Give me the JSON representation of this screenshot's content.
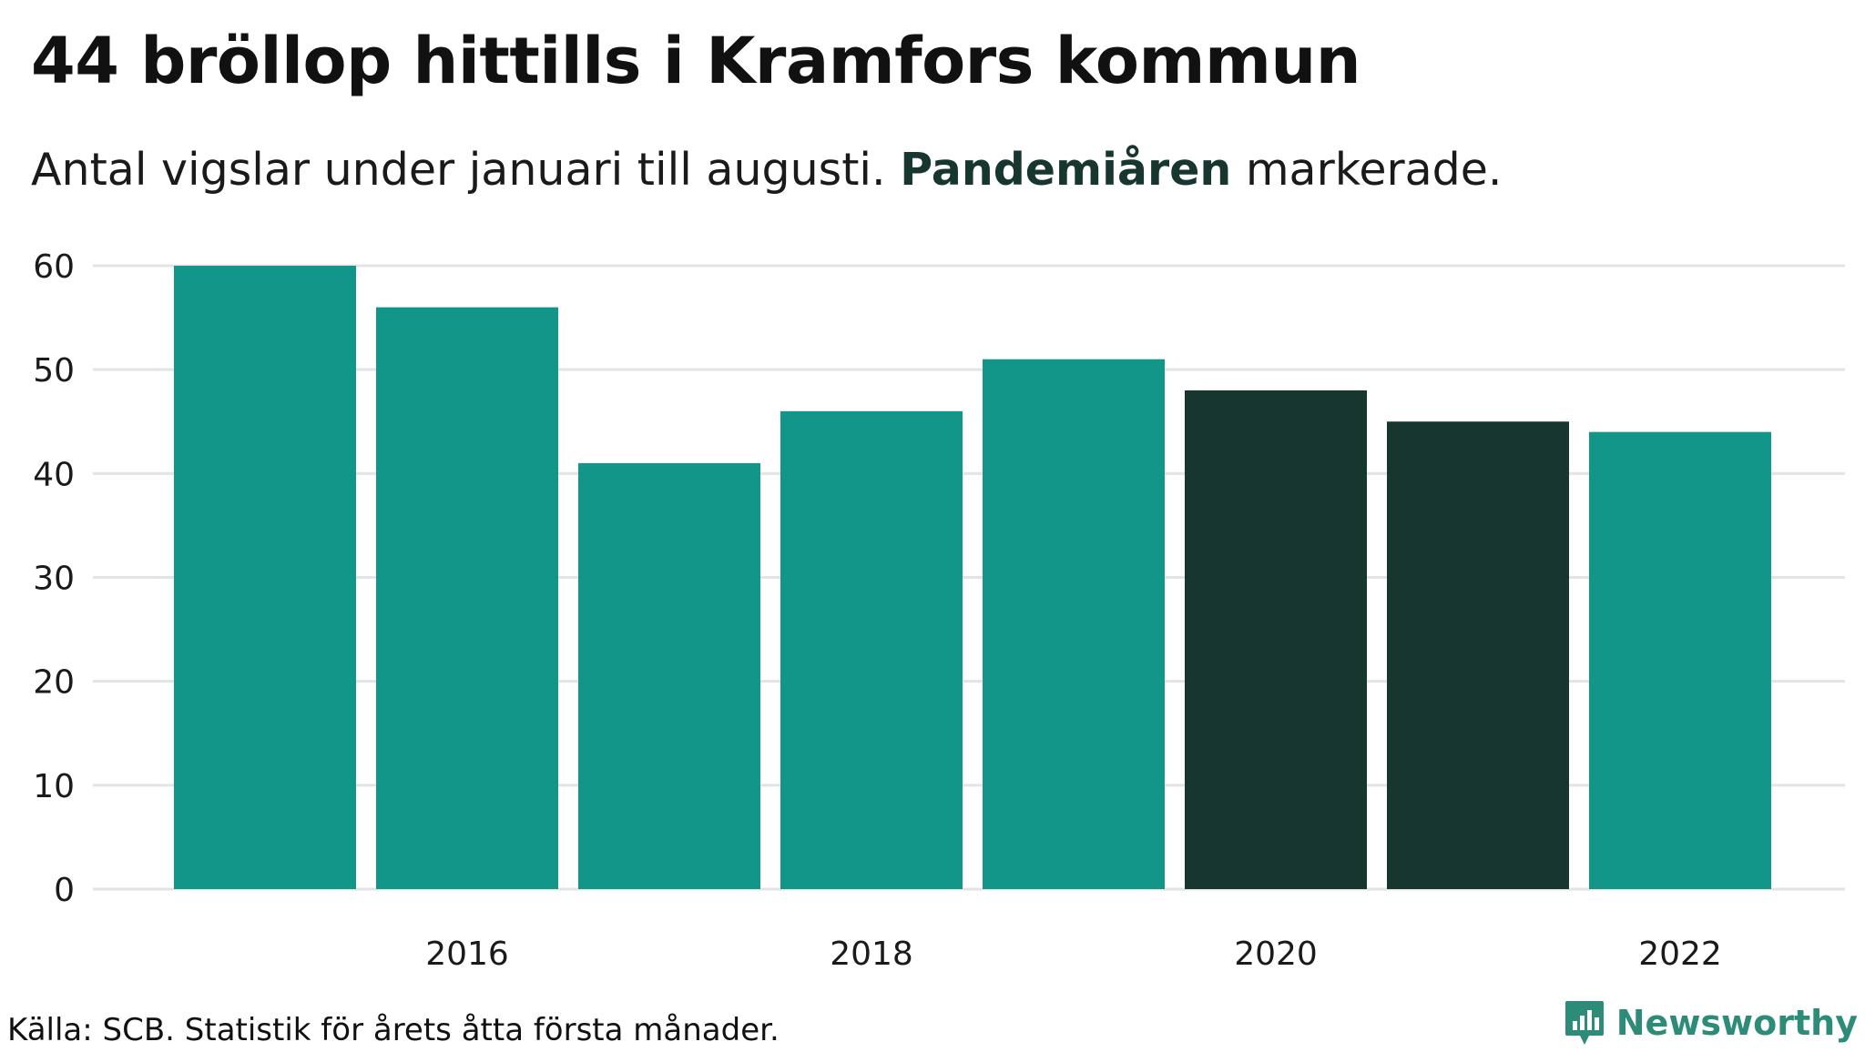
{
  "title": "44 bröllop hittills i Kramfors kommun",
  "subtitle": {
    "before": "Antal vigslar under januari till augusti. ",
    "highlight": "Pandemiåren",
    "after": " markerade."
  },
  "source": "Källa: SCB. Statistik för årets åtta första månader.",
  "brand": "Newsworthy",
  "colors": {
    "normal": "#13968a",
    "highlight": "#173630",
    "grid": "#e3e3e3",
    "brand": "#2d8c78"
  },
  "chart_data": {
    "type": "bar",
    "title": "44 bröllop hittills i Kramfors kommun",
    "subtitle": "Antal vigslar under januari till augusti. Pandemiåren markerade.",
    "xlabel": "",
    "ylabel": "",
    "ylim": [
      0,
      60
    ],
    "yticks": [
      0,
      10,
      20,
      30,
      40,
      50,
      60
    ],
    "xtick_labels": [
      "2016",
      "2018",
      "2020",
      "2022"
    ],
    "grid": true,
    "legend": "none",
    "categories": [
      "2015",
      "2016",
      "2017",
      "2018",
      "2019",
      "2020",
      "2021",
      "2022"
    ],
    "values": [
      60,
      56,
      41,
      46,
      51,
      48,
      45,
      44
    ],
    "highlighted": [
      false,
      false,
      false,
      false,
      false,
      true,
      true,
      false
    ]
  }
}
